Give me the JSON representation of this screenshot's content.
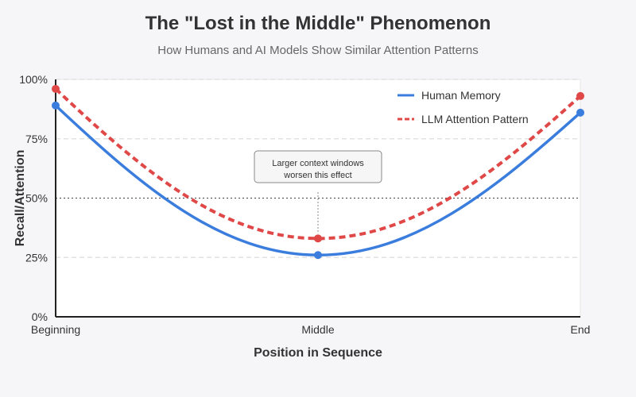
{
  "chart_data": {
    "type": "line",
    "title": "The \"Lost in the Middle\" Phenomenon",
    "subtitle": "How Humans and AI Models Show Similar Attention Patterns",
    "xlabel": "Position in Sequence",
    "ylabel": "Recall/Attention",
    "x_categories": [
      "Beginning",
      "Middle",
      "End"
    ],
    "y_ticks": [
      "0%",
      "25%",
      "50%",
      "75%",
      "100%"
    ],
    "ylim": [
      0,
      100
    ],
    "grid": "horizontal dashed",
    "reference_line": {
      "y": 50,
      "style": "dotted"
    },
    "legend_position": "top-right",
    "series": [
      {
        "name": "Human Memory",
        "color": "#3b7ddd",
        "style": "solid",
        "x": [
          0,
          0.5,
          1
        ],
        "values": [
          89,
          26,
          86
        ]
      },
      {
        "name": "LLM Attention Pattern",
        "color": "#e04848",
        "style": "dashed",
        "x": [
          0,
          0.5,
          1
        ],
        "values": [
          96,
          33,
          93
        ]
      }
    ],
    "annotation": {
      "text_lines": [
        "Larger context windows",
        "worsen this effect"
      ],
      "points_to": {
        "x": 0.5,
        "y": 33
      }
    }
  }
}
